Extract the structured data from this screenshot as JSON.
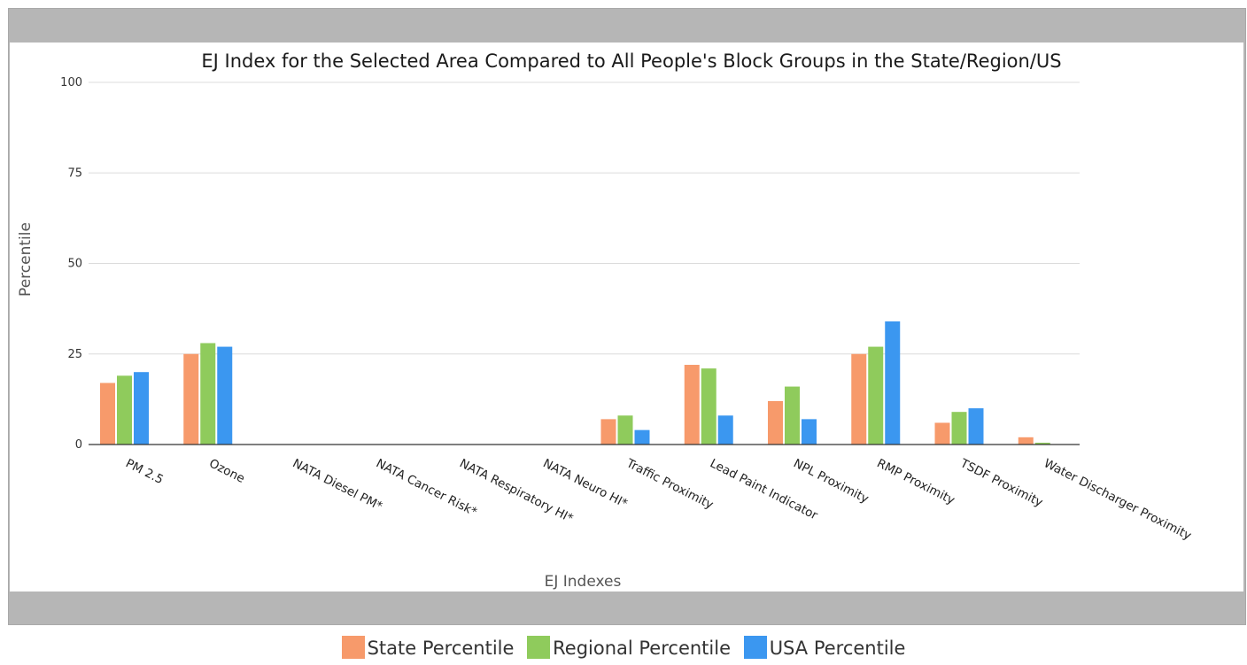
{
  "chart_data": {
    "type": "bar",
    "title": "EJ Index for the Selected Area Compared to All People's Block Groups in the State/Region/US",
    "xlabel": "EJ Indexes",
    "ylabel": "Percentile",
    "ylim": [
      0,
      100
    ],
    "yticks": [
      0,
      25,
      50,
      75,
      100
    ],
    "grid": true,
    "legend_placement": "bottom",
    "categories": [
      "PM 2.5",
      "Ozone",
      "NATA Diesel PM*",
      "NATA Cancer Risk*",
      "NATA Respiratory HI*",
      "NATA Neuro HI*",
      "Traffic Proximity",
      "Lead Paint Indicator",
      "NPL Proximity",
      "RMP Proximity",
      "TSDF Proximity",
      "Water Discharger Proximity"
    ],
    "series": [
      {
        "name": "State Percentile",
        "color": "#f79a6b",
        "values": [
          17,
          25,
          0,
          0,
          0,
          0,
          7,
          22,
          12,
          25,
          6,
          2
        ]
      },
      {
        "name": "Regional Percentile",
        "color": "#8fcb5c",
        "values": [
          19,
          28,
          0,
          0,
          0,
          0,
          8,
          21,
          16,
          27,
          9,
          0.5
        ]
      },
      {
        "name": "USA Percentile",
        "color": "#3b97f0",
        "values": [
          20,
          27,
          0,
          0,
          0,
          0,
          4,
          8,
          7,
          34,
          10,
          0
        ]
      }
    ]
  }
}
